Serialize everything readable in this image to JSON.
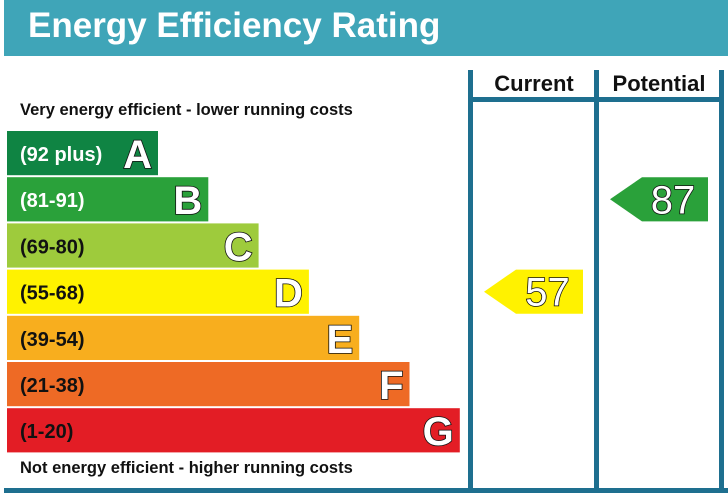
{
  "title": "Energy Efficiency Rating",
  "caption_top": "Very energy efficient - lower running costs",
  "caption_bottom": "Not energy efficient - higher running costs",
  "colors": {
    "title_bar": "#3fa5b8",
    "frame": "#1e6f8f"
  },
  "chart_data": {
    "type": "bar",
    "columns": [
      "Current",
      "Potential"
    ],
    "bands": [
      {
        "letter": "A",
        "range": "(92 plus)",
        "min": 92,
        "max": 100,
        "color": "#0f8443",
        "dark_text": false
      },
      {
        "letter": "B",
        "range": "(81-91)",
        "min": 81,
        "max": 91,
        "color": "#2aa13a",
        "dark_text": false
      },
      {
        "letter": "C",
        "range": "(69-80)",
        "min": 69,
        "max": 80,
        "color": "#9ecb3c",
        "dark_text": true
      },
      {
        "letter": "D",
        "range": "(55-68)",
        "min": 55,
        "max": 68,
        "color": "#fff200",
        "dark_text": true
      },
      {
        "letter": "E",
        "range": "(39-54)",
        "min": 39,
        "max": 54,
        "color": "#f8ae1e",
        "dark_text": true
      },
      {
        "letter": "F",
        "range": "(21-38)",
        "min": 21,
        "max": 38,
        "color": "#ee6a25",
        "dark_text": true
      },
      {
        "letter": "G",
        "range": "(1-20)",
        "min": 1,
        "max": 20,
        "color": "#e31d25",
        "dark_text": true
      }
    ],
    "ratings": [
      {
        "column": "Current",
        "value": 57,
        "band": "D",
        "color": "#fff200"
      },
      {
        "column": "Potential",
        "value": 87,
        "band": "B",
        "color": "#2aa13a"
      }
    ]
  }
}
